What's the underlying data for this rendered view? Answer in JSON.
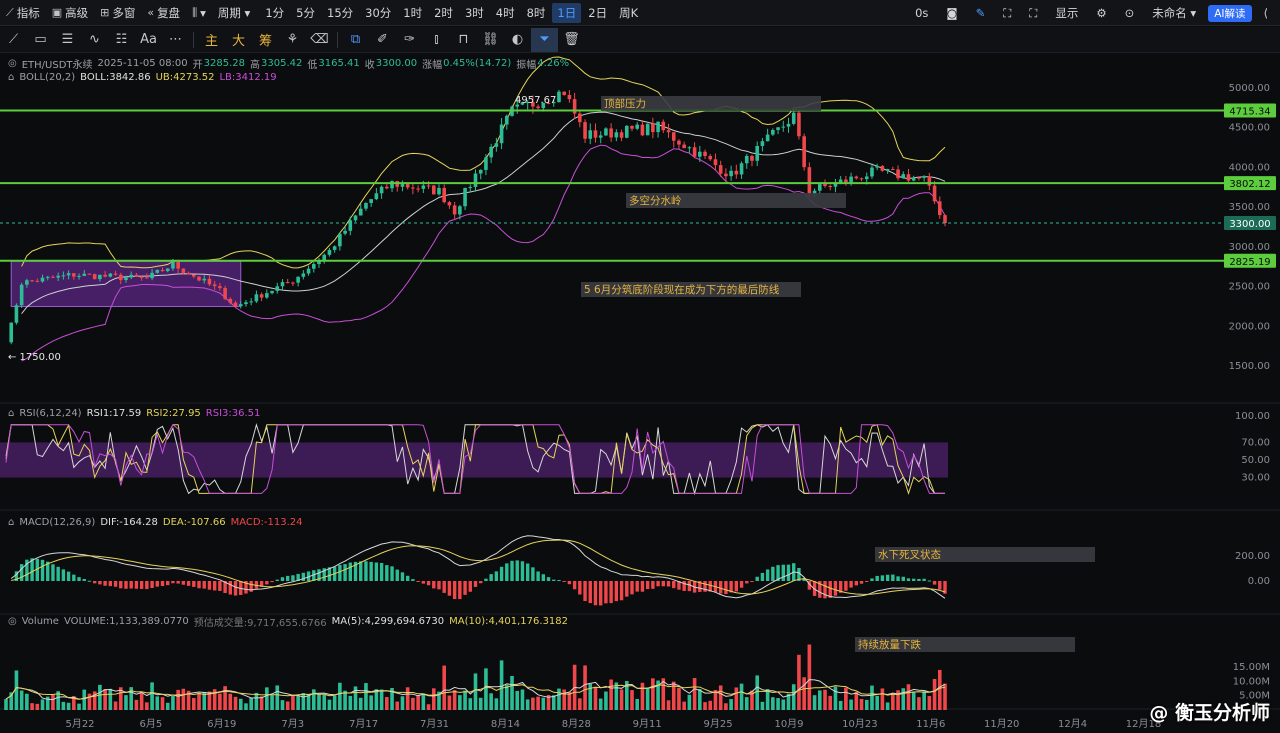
{
  "topbar": {
    "items": [
      {
        "icon": "line-chart-icon",
        "glyph": "⟋",
        "label": "指标"
      },
      {
        "icon": "advanced-icon",
        "glyph": "▣",
        "label": "高级"
      },
      {
        "icon": "multi-window-icon",
        "glyph": "⊞",
        "label": "多窗"
      },
      {
        "icon": "replay-icon",
        "glyph": "«",
        "label": "复盘"
      },
      {
        "icon": "candle-type-icon",
        "glyph": "⫼",
        "label": "▾"
      },
      {
        "icon": "",
        "glyph": "",
        "label": "周期 ▾"
      }
    ],
    "timeframes": [
      "1分",
      "5分",
      "15分",
      "30分",
      "1时",
      "2时",
      "3时",
      "4时",
      "8时",
      "1日",
      "2日",
      "周K"
    ],
    "active_timeframe": "1日",
    "right": {
      "countdown": "0s",
      "display_label": "显示",
      "layout_name": "未命名 ▾",
      "ai_label": "AI解读"
    }
  },
  "toolbar2": {
    "chinese_tools": [
      "主",
      "大",
      "筹"
    ]
  },
  "legend": {
    "main": {
      "symbol": "ETH/USDT永续",
      "date": "2025-11-05 08:00",
      "open_label": "开",
      "open": "3285.28",
      "high_label": "高",
      "high": "3305.42",
      "low_label": "低",
      "low": "3165.41",
      "close_label": "收",
      "close": "3300.00",
      "change_label": "涨幅",
      "change": "0.45%(14.72)",
      "amp_label": "振幅",
      "amp": "4.26%"
    },
    "boll": {
      "name": "BOLL(20,2)",
      "boll": "BOLL:3842.86",
      "ub": "UB:4273.52",
      "lb": "LB:3412.19"
    },
    "rsi": {
      "name": "RSI(6,12,24)",
      "rsi1": "RSI1:17.59",
      "rsi2": "RSI2:27.95",
      "rsi3": "RSI3:36.51"
    },
    "macd": {
      "name": "MACD(12,26,9)",
      "dif": "DIF:-164.28",
      "dea": "DEA:-107.66",
      "macd": "MACD:-113.24"
    },
    "volume": {
      "name": "Volume",
      "vol": "VOLUME:1,133,389.0770",
      "est": "预估成交量:9,717,655.6766",
      "ma5": "MA(5):4,299,694.6730",
      "ma10": "MA(10):4,401,176.3182"
    }
  },
  "watermark": "@ 衡玉分析师",
  "colors": {
    "up": "#2dbd96",
    "down": "#f0474b",
    "green_line": "#5ccd3c",
    "purple": "#7a2fae",
    "yellow": "#e6d35a",
    "magenta": "#c84fd8",
    "white": "#d7d7d7"
  },
  "chart_data": {
    "type": "candlestick",
    "symbol": "ETH/USDT永续",
    "interval": "1日",
    "x_tick_labels": [
      "5月22",
      "6月5",
      "6月19",
      "7月3",
      "7月17",
      "7月31",
      "8月14",
      "8月28",
      "9月11",
      "9月25",
      "10月9",
      "10月23",
      "11月6",
      "11月20",
      "12月4",
      "12月18"
    ],
    "price_axis": {
      "ticks": [
        5000,
        4500,
        4000,
        3500,
        3000,
        2500,
        2000,
        1500
      ],
      "labels": [
        "5000.00",
        "4500.00",
        "4000.00",
        "3500.00",
        "3000.00",
        "2500.00",
        "2000.00",
        "1500.00"
      ],
      "ylim": [
        1150,
        5300
      ]
    },
    "horizontal_levels": [
      {
        "value": 4715.34,
        "label": "4715.34"
      },
      {
        "value": 3802.12,
        "label": "3802.12"
      },
      {
        "value": 2825.19,
        "label": "2825.19"
      }
    ],
    "current_price": {
      "value": 3300.0,
      "label": "3300.00"
    },
    "annotations": [
      {
        "text": "顶部压力"
      },
      {
        "text": "多空分水岭"
      },
      {
        "text": "5 6月分筑底阶段现在成为下方的最后防线"
      },
      {
        "text": "水下死叉状态"
      },
      {
        "text": "持续放量下跌"
      }
    ],
    "extreme_labels": [
      {
        "text": "4957.67",
        "value": 4957.67
      },
      {
        "text": "1750.00",
        "value": 1750.0
      }
    ],
    "consolidation_zone": {
      "low": 2250,
      "high": 2820
    },
    "price_path": [
      {
        "label": "5月9",
        "v": 1750
      },
      {
        "label": "5月12",
        "v": 2550
      },
      {
        "label": "5月22",
        "v": 2650
      },
      {
        "label": "6月5",
        "v": 2600
      },
      {
        "label": "6月10",
        "v": 2780
      },
      {
        "label": "6月19",
        "v": 2450
      },
      {
        "label": "6月22",
        "v": 2250
      },
      {
        "label": "7月3",
        "v": 2580
      },
      {
        "label": "7月10",
        "v": 2950
      },
      {
        "label": "7月17",
        "v": 3550
      },
      {
        "label": "7月22",
        "v": 3800
      },
      {
        "label": "7月31",
        "v": 3700
      },
      {
        "label": "8月3",
        "v": 3450
      },
      {
        "label": "8月14",
        "v": 4700
      },
      {
        "label": "8月24",
        "v": 4957
      },
      {
        "label": "8月28",
        "v": 4400
      },
      {
        "label": "9月11",
        "v": 4500
      },
      {
        "label": "9月25",
        "v": 3900
      },
      {
        "label": "10月7",
        "v": 4650
      },
      {
        "label": "10月10",
        "v": 3700
      },
      {
        "label": "10月23",
        "v": 3950
      },
      {
        "label": "11月1",
        "v": 3850
      },
      {
        "label": "11月5",
        "v": 3300
      }
    ],
    "rsi": {
      "ticks": [
        100,
        70,
        50,
        30
      ],
      "labels": [
        "100.00",
        "70.00",
        "50.00",
        "30.00"
      ],
      "band": [
        30,
        70
      ],
      "series": [
        {
          "name": "RSI1",
          "last": 17.59
        },
        {
          "name": "RSI2",
          "last": 27.95
        },
        {
          "name": "RSI3",
          "last": 36.51
        }
      ]
    },
    "macd": {
      "ticks": [
        200,
        0
      ],
      "labels": [
        "200.00",
        "0.00"
      ],
      "series": [
        {
          "name": "DIF",
          "last": -164.28
        },
        {
          "name": "DEA",
          "last": -107.66
        },
        {
          "name": "MACD",
          "last": -113.24
        }
      ]
    },
    "volume": {
      "ticks": [
        15000000,
        10000000,
        5000000
      ],
      "labels": [
        "15.00M",
        "10.00M",
        "5.00M"
      ]
    }
  }
}
